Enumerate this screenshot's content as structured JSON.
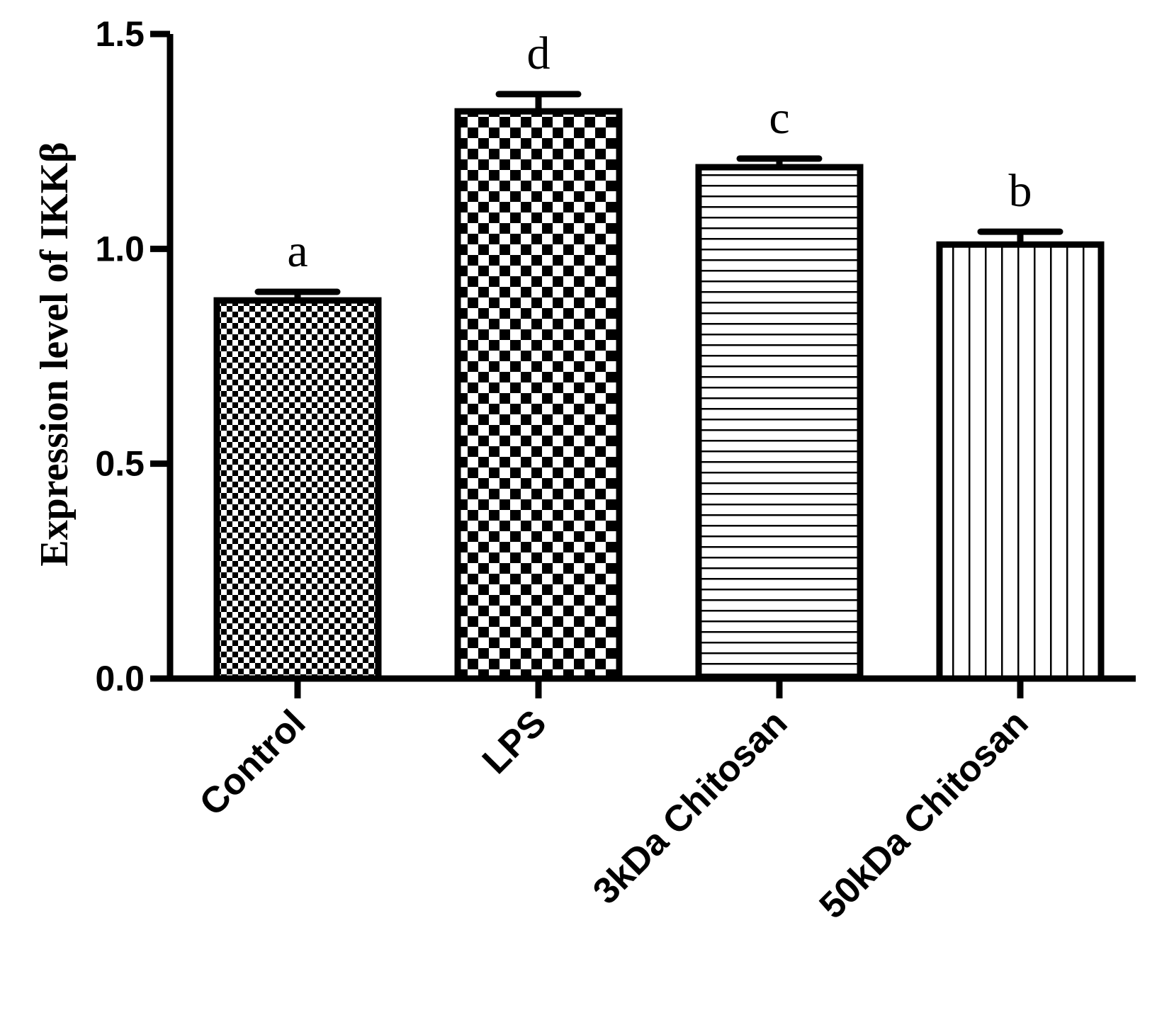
{
  "chart_data": {
    "type": "bar",
    "title": "",
    "xlabel": "",
    "ylabel": "Expression level of IKKβ",
    "ylim": [
      0,
      1.5
    ],
    "yticks": [
      "0.0",
      "0.5",
      "1.0",
      "1.5"
    ],
    "categories": [
      "Control",
      "LPS",
      "3kDa Chitosan",
      "50kDa Chitosan"
    ],
    "values": [
      0.88,
      1.32,
      1.19,
      1.01
    ],
    "errors": [
      0.02,
      0.04,
      0.02,
      0.03
    ],
    "significance_labels": [
      "a",
      "d",
      "c",
      "b"
    ],
    "patterns": [
      "fine-checker",
      "coarse-checker",
      "horizontal-lines",
      "vertical-lines"
    ]
  }
}
